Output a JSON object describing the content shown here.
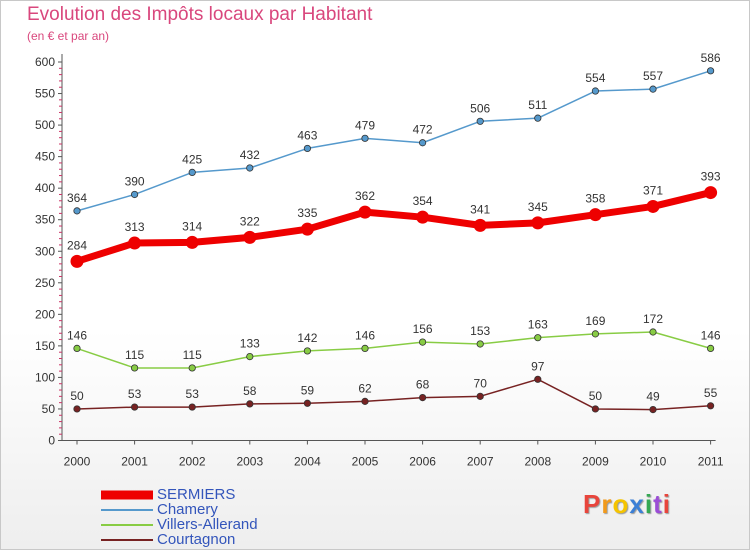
{
  "chart_data": {
    "type": "line",
    "title": "Evolution des Impôts locaux par Habitant",
    "subtitle": "(en € et par an)",
    "xlabel": "",
    "ylabel": "",
    "ylim": [
      0,
      600
    ],
    "yticks": [
      "0",
      "50",
      "100",
      "150",
      "200",
      "250",
      "300",
      "350",
      "400",
      "450",
      "500",
      "550",
      "600"
    ],
    "categories": [
      "2000",
      "2001",
      "2002",
      "2003",
      "2004",
      "2005",
      "2006",
      "2007",
      "2008",
      "2009",
      "2010",
      "2011"
    ],
    "grid": false,
    "legend_position": "bottom-left",
    "series": [
      {
        "name": "SERMIERS",
        "color": "#ee0000",
        "values": [
          284,
          313,
          314,
          322,
          335,
          362,
          354,
          341,
          345,
          358,
          371,
          393
        ]
      },
      {
        "name": "Chamery",
        "color": "#5599cc",
        "values": [
          364,
          390,
          425,
          432,
          463,
          479,
          472,
          506,
          511,
          554,
          557,
          586
        ]
      },
      {
        "name": "Villers-Allerand",
        "color": "#88cc44",
        "values": [
          146,
          115,
          115,
          133,
          142,
          146,
          156,
          153,
          163,
          169,
          172,
          146
        ]
      },
      {
        "name": "Courtagnon",
        "color": "#772222",
        "values": [
          50,
          53,
          53,
          58,
          59,
          62,
          68,
          70,
          97,
          50,
          49,
          55
        ]
      }
    ]
  },
  "logo": {
    "text": "Proxiti",
    "colors": [
      "#e8453c",
      "#f29a1b",
      "#f5c400",
      "#3b7fd6",
      "#35a853",
      "#9b4dd6",
      "#e8453c"
    ]
  }
}
